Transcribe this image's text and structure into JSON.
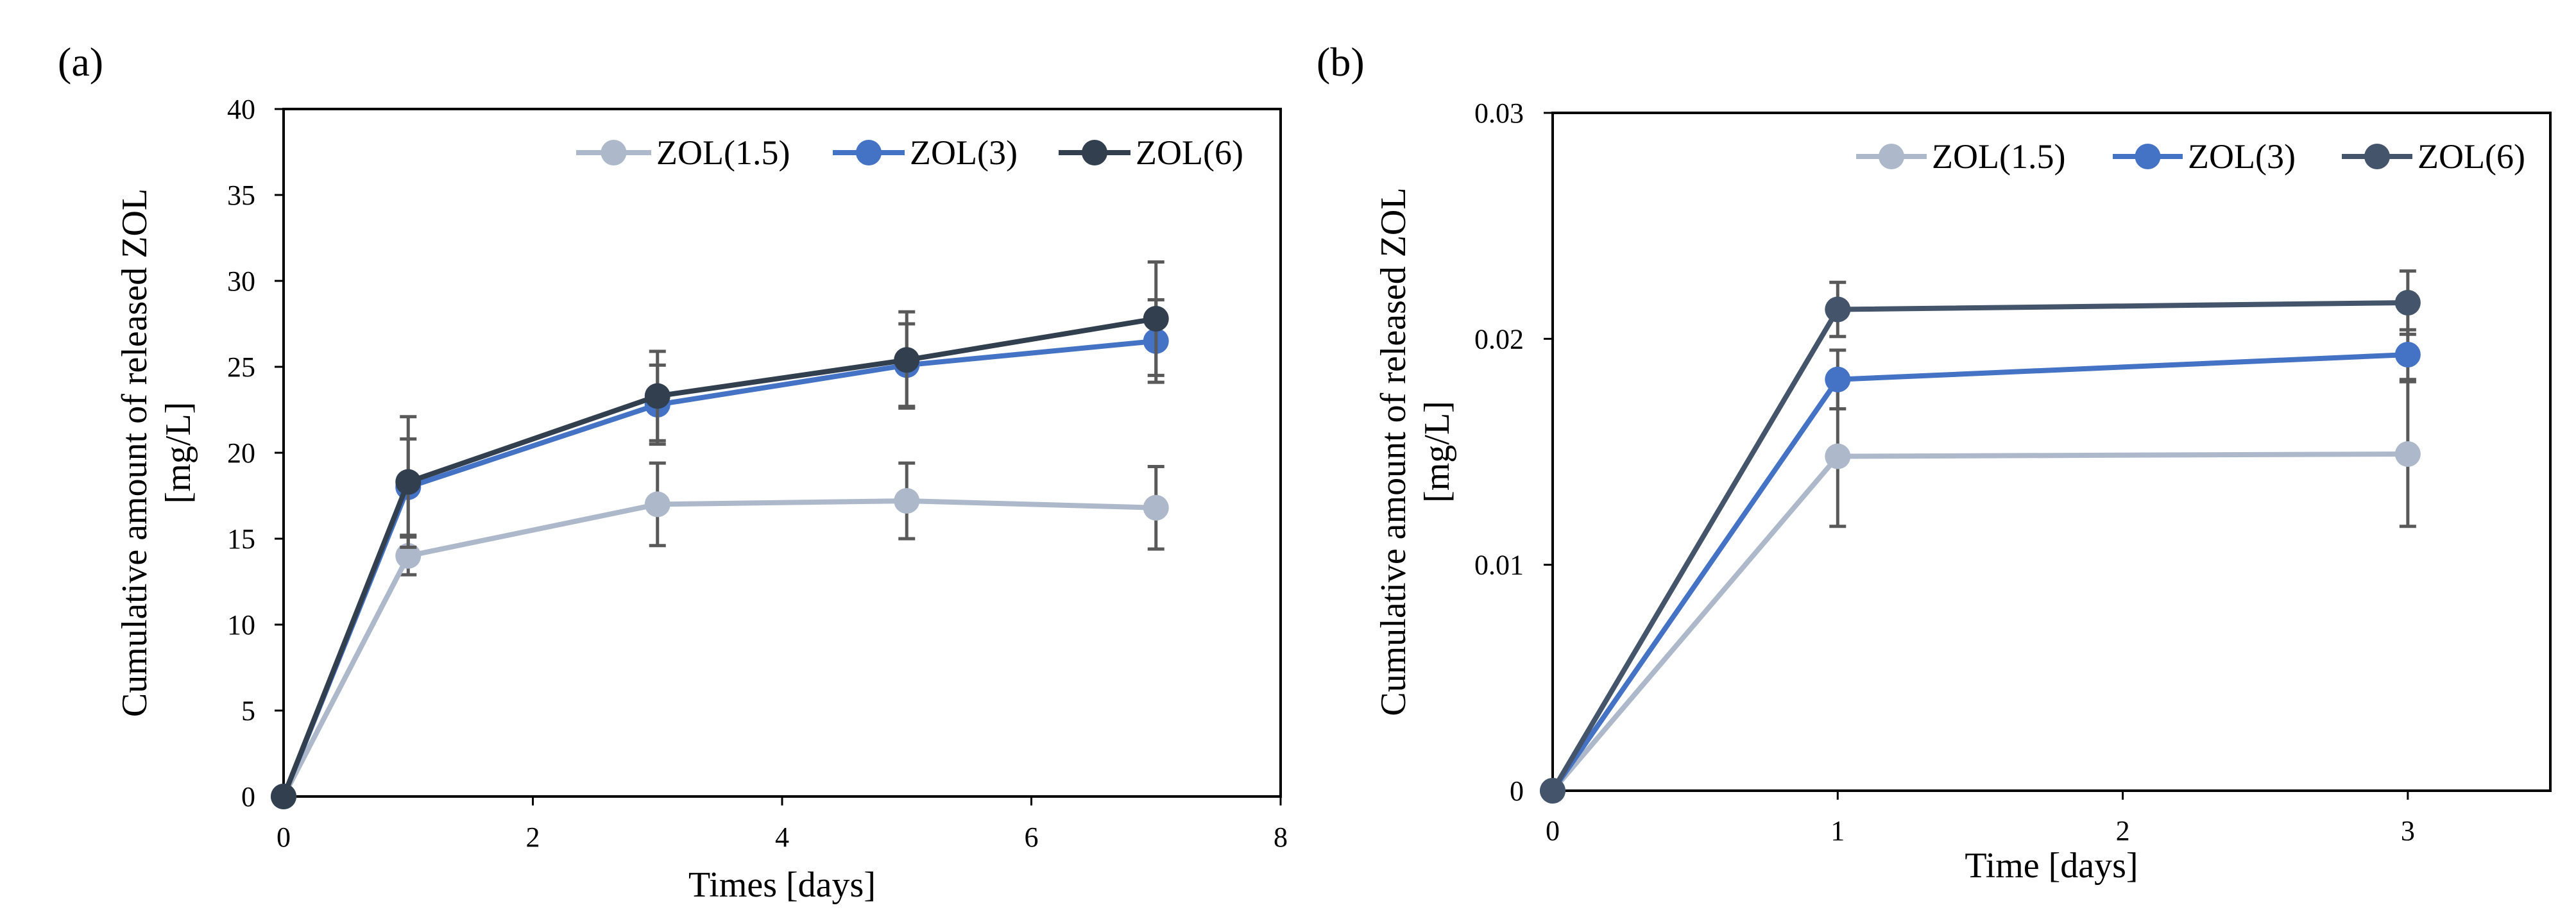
{
  "chart_data": [
    {
      "panel_label": "(a)",
      "type": "line",
      "xlabel": "Times [days]",
      "ylabel_lines": [
        "Cumulative amount of released ZOL",
        "[mg/L]"
      ],
      "xlim": [
        0,
        8
      ],
      "ylim": [
        0,
        40
      ],
      "xticks": [
        0,
        2,
        4,
        6,
        8
      ],
      "yticks": [
        0,
        5,
        10,
        15,
        20,
        25,
        30,
        35,
        40
      ],
      "xtick_labels": [
        "0",
        "2",
        "4",
        "6",
        "8"
      ],
      "ytick_labels": [
        "0",
        "5",
        "10",
        "15",
        "20",
        "25",
        "30",
        "35",
        "40"
      ],
      "grid": false,
      "legend_position": "top-right",
      "series": [
        {
          "name": "ZOL(1.5)",
          "color": "#adb9ca",
          "x": [
            0,
            1,
            3,
            5,
            7
          ],
          "y": [
            0,
            14.0,
            17.0,
            17.2,
            16.8
          ],
          "err": [
            0,
            1.1,
            2.4,
            2.2,
            2.4
          ]
        },
        {
          "name": "ZOL(3)",
          "color": "#4472c4",
          "x": [
            0,
            1,
            3,
            5,
            7
          ],
          "y": [
            0,
            18.0,
            22.8,
            25.1,
            26.5
          ],
          "err": [
            0,
            2.8,
            2.3,
            2.4,
            2.4
          ]
        },
        {
          "name": "ZOL(6)",
          "color": "#323f4f",
          "x": [
            0,
            1,
            3,
            5,
            7
          ],
          "y": [
            0,
            18.3,
            23.3,
            25.4,
            27.8
          ],
          "err": [
            0,
            3.8,
            2.6,
            2.8,
            3.3
          ]
        }
      ]
    },
    {
      "panel_label": "(b)",
      "type": "line",
      "xlabel": "Time [days]",
      "ylabel_lines": [
        "Cumulative amount of released ZOL",
        "[mg/L]"
      ],
      "xlim": [
        0,
        3.5
      ],
      "ylim": [
        0,
        0.03
      ],
      "xticks": [
        0,
        1,
        2,
        3
      ],
      "yticks": [
        0,
        0.01,
        0.02,
        0.03
      ],
      "xtick_labels": [
        "0",
        "1",
        "2",
        "3"
      ],
      "ytick_labels": [
        "0",
        "0.01",
        "0.02",
        "0.03"
      ],
      "grid": false,
      "legend_position": "top-right",
      "series": [
        {
          "name": "ZOL(1.5)",
          "color": "#adb9ca",
          "x": [
            0,
            1,
            3
          ],
          "y": [
            0,
            0.0148,
            0.0149
          ],
          "err": [
            0,
            0.0031,
            0.0032
          ]
        },
        {
          "name": "ZOL(3)",
          "color": "#4472c4",
          "x": [
            0,
            1,
            3
          ],
          "y": [
            0,
            0.0182,
            0.0193
          ],
          "err": [
            0,
            0.0013,
            0.0011
          ]
        },
        {
          "name": "ZOL(6)",
          "color": "#44546a",
          "x": [
            0,
            1,
            3
          ],
          "y": [
            0,
            0.0213,
            0.0216
          ],
          "err": [
            0,
            0.0012,
            0.0014
          ]
        }
      ]
    }
  ]
}
